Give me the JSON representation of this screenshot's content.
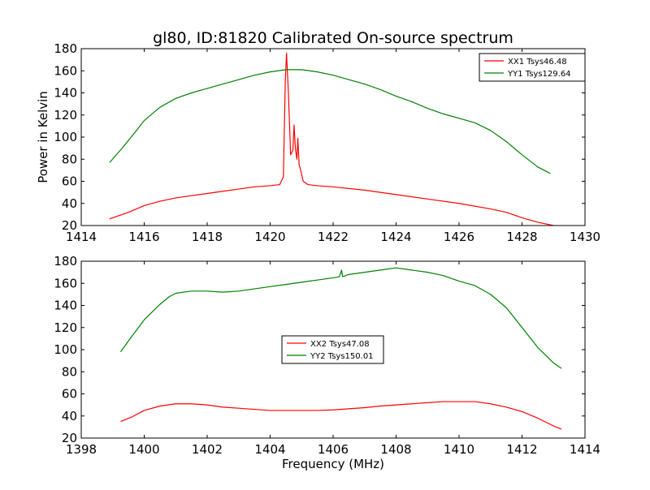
{
  "chart_data": [
    {
      "type": "line",
      "title": "gl80, ID:81820 Calibrated On-source spectrum",
      "xlabel": "",
      "ylabel": "Power in Kelvin",
      "xlim": [
        1414,
        1430
      ],
      "ylim": [
        20,
        180
      ],
      "xticks": [
        "1414",
        "1416",
        "1418",
        "1420",
        "1422",
        "1424",
        "1426",
        "1428",
        "1430"
      ],
      "yticks": [
        "20",
        "40",
        "60",
        "80",
        "100",
        "120",
        "140",
        "160",
        "180"
      ],
      "grid": false,
      "legend_position": "top-right",
      "series": [
        {
          "name": "XX1 Tsys46.48",
          "color": "#ff0000",
          "x": [
            1414.9,
            1415.5,
            1416.0,
            1416.5,
            1417.0,
            1417.5,
            1418.0,
            1418.5,
            1419.0,
            1419.5,
            1420.0,
            1420.3,
            1420.42,
            1420.48,
            1420.52,
            1420.58,
            1420.65,
            1420.72,
            1420.76,
            1420.8,
            1420.85,
            1420.88,
            1420.92,
            1420.97,
            1421.05,
            1421.2,
            1421.5,
            1422.0,
            1423.0,
            1424.0,
            1425.0,
            1426.0,
            1427.0,
            1427.5,
            1428.0,
            1428.5,
            1429.0
          ],
          "y": [
            26,
            32,
            38,
            42,
            45,
            47,
            49,
            51,
            53,
            55,
            56,
            57,
            64,
            150,
            176,
            140,
            84,
            88,
            111,
            90,
            80,
            99,
            75,
            70,
            60,
            57,
            56,
            55,
            52,
            48,
            44,
            40,
            35,
            32,
            27,
            23,
            20
          ]
        },
        {
          "name": "YY1 Tsys129.64",
          "color": "#008000",
          "x": [
            1414.9,
            1415.3,
            1415.7,
            1416.0,
            1416.5,
            1417.0,
            1417.5,
            1418.0,
            1418.5,
            1419.0,
            1419.5,
            1420.0,
            1420.5,
            1421.0,
            1421.5,
            1422.0,
            1422.5,
            1423.0,
            1423.5,
            1424.0,
            1424.5,
            1425.0,
            1425.5,
            1426.0,
            1426.5,
            1427.0,
            1427.5,
            1428.0,
            1428.5,
            1428.9
          ],
          "y": [
            77,
            90,
            104,
            115,
            127,
            135,
            140,
            144,
            148,
            152,
            156,
            159,
            161,
            161,
            159,
            156,
            152,
            148,
            143,
            137,
            132,
            126,
            121,
            117,
            113,
            106,
            96,
            84,
            73,
            67
          ]
        }
      ]
    },
    {
      "type": "line",
      "title": "",
      "xlabel": "Frequency (MHz)",
      "ylabel": "",
      "xlim": [
        1398,
        1414
      ],
      "ylim": [
        20,
        180
      ],
      "xticks": [
        "1398",
        "1400",
        "1402",
        "1404",
        "1406",
        "1408",
        "1410",
        "1412",
        "1414"
      ],
      "yticks": [
        "20",
        "40",
        "60",
        "80",
        "100",
        "120",
        "140",
        "160",
        "180"
      ],
      "grid": false,
      "legend_position": "center",
      "series": [
        {
          "name": "XX2 Tsys47.08",
          "color": "#ff0000",
          "x": [
            1399.25,
            1399.6,
            1400.0,
            1400.5,
            1401.0,
            1401.5,
            1402.0,
            1402.5,
            1403.0,
            1403.5,
            1404.0,
            1404.5,
            1405.0,
            1405.5,
            1406.0,
            1406.5,
            1407.0,
            1407.5,
            1408.0,
            1408.5,
            1409.0,
            1409.5,
            1410.0,
            1410.5,
            1411.0,
            1411.5,
            1412.0,
            1412.5,
            1413.0,
            1413.25
          ],
          "y": [
            35,
            39,
            45,
            49,
            51,
            51,
            50,
            48,
            47,
            46,
            45,
            45,
            45,
            45,
            45.5,
            46.5,
            47.5,
            49,
            50,
            51,
            52,
            53,
            53,
            53,
            51,
            48,
            44,
            38,
            31,
            28
          ]
        },
        {
          "name": "YY2 Tsys150.01",
          "color": "#008000",
          "x": [
            1399.25,
            1399.5,
            1400.0,
            1400.5,
            1400.8,
            1401.0,
            1401.5,
            1402.0,
            1402.5,
            1403.0,
            1403.5,
            1404.0,
            1404.5,
            1405.0,
            1405.5,
            1406.0,
            1406.2,
            1406.27,
            1406.3,
            1406.5,
            1407.0,
            1407.5,
            1408.0,
            1408.5,
            1409.0,
            1409.5,
            1410.0,
            1410.5,
            1411.0,
            1411.5,
            1412.0,
            1412.5,
            1413.0,
            1413.25
          ],
          "y": [
            98,
            108,
            127,
            141,
            148,
            151,
            153,
            153,
            152,
            153,
            155,
            157,
            159,
            161,
            163,
            165,
            166,
            172,
            166,
            168,
            170,
            172,
            174,
            172,
            170,
            167,
            162,
            158,
            150,
            138,
            120,
            102,
            88,
            83
          ]
        }
      ]
    }
  ]
}
